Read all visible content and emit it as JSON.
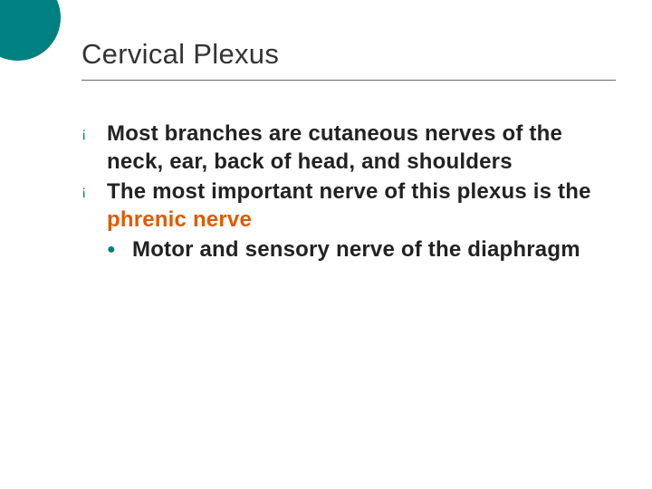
{
  "slide": {
    "title": "Cervical Plexus",
    "bullets": [
      {
        "text": "Most branches are cutaneous nerves of the neck, ear, back of head, and shoulders"
      },
      {
        "prefix": "The most important nerve of this plexus is the ",
        "highlight": "phrenic nerve",
        "sub": [
          {
            "text": "Motor and sensory nerve of the diaphragm"
          }
        ]
      }
    ]
  },
  "style": {
    "accent_color": "#008080",
    "highlight_color": "#e05a00",
    "title_fontsize": 31,
    "body_fontsize": 24,
    "background": "#ffffff",
    "bullet_glyph": "¡",
    "sub_bullet_glyph": "●"
  }
}
